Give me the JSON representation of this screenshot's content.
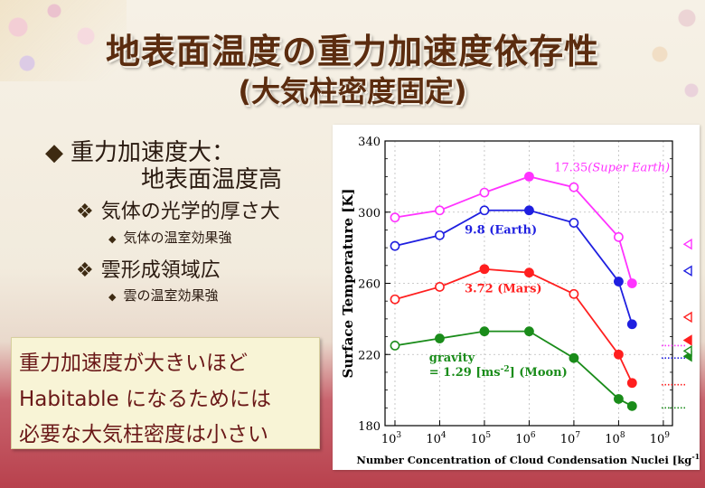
{
  "slide": {
    "title": "地表面温度の重力加速度依存性",
    "subtitle": "(大気柱密度固定)",
    "bullets": {
      "b1_line1": "重力加速度大：",
      "b1_line2": "地表面温度高",
      "b2": "気体の光学的厚さ大",
      "b3": "気体の温室効果強",
      "b4": "雲形成領域広",
      "b5": "雲の温室効果強"
    },
    "conclusion": {
      "line1": "重力加速度が大きいほど",
      "line2": "Habitable になるためには",
      "line3": "必要な大気柱密度は小さい"
    }
  },
  "chart_data": {
    "type": "line",
    "xscale": "log",
    "x_ticks": [
      "10^3",
      "10^4",
      "10^5",
      "10^6",
      "10^7",
      "10^8",
      "10^9"
    ],
    "x_tick_values": [
      1000,
      10000,
      100000,
      1000000,
      10000000,
      100000000,
      1000000000
    ],
    "xlim": [
      600,
      1600000000
    ],
    "ylim": [
      180,
      340
    ],
    "y_ticks": [
      180,
      220,
      260,
      300,
      340
    ],
    "xlabel": "Number Concentration of Cloud Condensation Nuclei [kg",
    "xlabel_sup": "-1",
    "xlabel_end": "]",
    "ylabel": "Surface Temperature  [K]",
    "x": [
      1000,
      10000,
      100000,
      1000000,
      10000000,
      100000000,
      200000000
    ],
    "series": [
      {
        "name": "17.35",
        "name_italic": "(Super Earth)",
        "color": "#ff33ff",
        "values": [
          297,
          301,
          311,
          320,
          314,
          286,
          260
        ],
        "filled": [
          false,
          false,
          false,
          true,
          false,
          false,
          true
        ],
        "right_marker_y": 282,
        "right_marker_style": "open"
      },
      {
        "name": "9.8 (Earth)",
        "name_italic": "",
        "color": "#1f1fe0",
        "values": [
          281,
          287,
          301,
          301,
          294,
          261,
          237
        ],
        "filled": [
          false,
          false,
          false,
          true,
          false,
          true,
          true
        ],
        "right_marker_y": 267,
        "right_marker_style": "open"
      },
      {
        "name": "3.72 (Mars)",
        "name_italic": "",
        "color": "#ff1f1f",
        "values": [
          251,
          258,
          268,
          266,
          254,
          220,
          204
        ],
        "filled": [
          false,
          false,
          true,
          true,
          false,
          true,
          true
        ],
        "right_marker_y": 241,
        "right_marker_style": "open"
      },
      {
        "name": "gravity",
        "name_line2": "= 1.29 [ms",
        "name_sup": "-2",
        "name_end": "] (Moon)",
        "color": "#1a8c1a",
        "values": [
          225,
          229,
          233,
          233,
          218,
          195,
          191
        ],
        "filled": [
          false,
          true,
          true,
          true,
          true,
          true,
          true
        ],
        "right_marker_y": 219,
        "right_marker_style": "filled"
      }
    ],
    "extra_markers": [
      {
        "color": "#ff1f1f",
        "y": 228,
        "style": "filled"
      },
      {
        "color": "#1a8c1a",
        "y": 222,
        "style": "open"
      }
    ],
    "reference_lines": [
      {
        "color": "#ff33ff",
        "y": 225
      },
      {
        "color": "#1f1fe0",
        "y": 218
      },
      {
        "color": "#ff1f1f",
        "y": 203
      },
      {
        "color": "#1a8c1a",
        "y": 190
      }
    ]
  }
}
